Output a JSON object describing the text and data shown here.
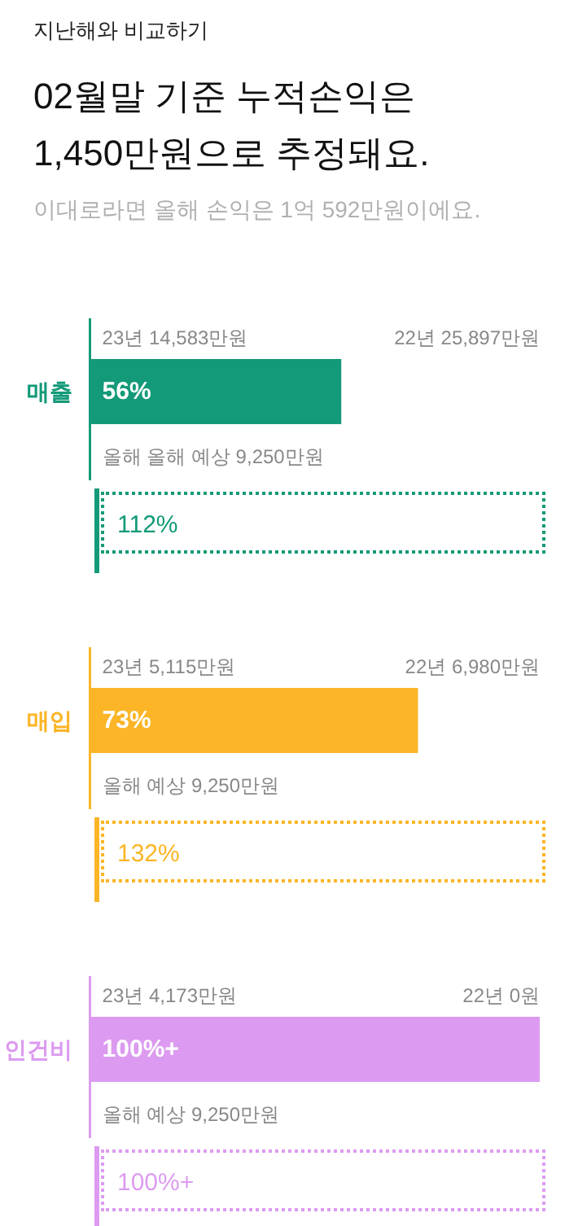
{
  "chart_data": {
    "type": "bar",
    "orientation": "horizontal",
    "title": "02월말 기준 누적손익은 1,450만원으로 추정돼요.",
    "subtitle": "이대로라면 올해 손익은 1억 592만원이에요.",
    "categories": [
      "매출",
      "매입",
      "인건비"
    ],
    "values": [
      56,
      73,
      100
    ],
    "colors": [
      "#139a78",
      "#fbb526",
      "#dc9bf0"
    ],
    "value_labels": [
      "56%",
      "73%",
      "100%+"
    ],
    "xlim": [
      0,
      100
    ],
    "annotations": [
      "지난해와 비교하기",
      "23년 14,583만원",
      "22년 25,897만원",
      "올해 올해 예상 9,250만원",
      "112%",
      "23년 5,115만원",
      "22년 6,980만원",
      "올해 예상 9,250만원",
      "132%",
      "23년 4,173만원",
      "22년 0원",
      "올해 예상 9,250만원",
      "100%+"
    ]
  }
}
